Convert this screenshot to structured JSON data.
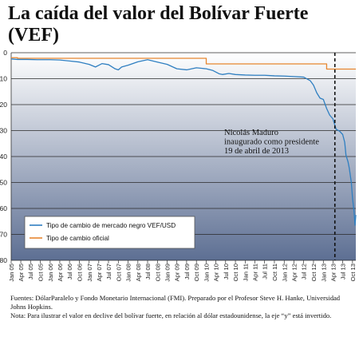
{
  "title": "La caída del valor del Bolívar Fuerte (VEF)",
  "colors": {
    "black_market": "#2f7fc1",
    "official": "#e7862f",
    "background_top": "#ffffff",
    "background_bottom": "#5d6f93",
    "event_line": "#111111"
  },
  "chart_data": {
    "type": "line",
    "y_axis": {
      "min": 0,
      "max": 80,
      "inverted": true,
      "ticks": [
        0,
        10,
        20,
        30,
        40,
        50,
        60,
        70,
        80
      ]
    },
    "x_axis": {
      "min": "2005-01",
      "max": "2013-11",
      "tick_labels": [
        "Jan 05",
        "Apr 05",
        "Jul 05",
        "Oct 05",
        "Jan 06",
        "Apr 06",
        "Jul 06",
        "Oct 06",
        "Jan 07",
        "Apr 07",
        "Jul 07",
        "Oct 07",
        "Jan 08",
        "Apr 08",
        "Jul 08",
        "Oct 08",
        "Jan 09",
        "Apr 09",
        "Jul 09",
        "Oct 09",
        "Jan 10",
        "Apr 10",
        "Jul 10",
        "Oct 10",
        "Jan 11",
        "Apr 11",
        "Jul 11",
        "Oct 11",
        "Jan 12",
        "Apr 12",
        "Jul 12",
        "Oct 12",
        "Jan 13",
        "Apr 13",
        "Jul 13",
        "Oct 13"
      ],
      "tick_dates": [
        "2005-01",
        "2005-04",
        "2005-07",
        "2005-10",
        "2006-01",
        "2006-04",
        "2006-07",
        "2006-10",
        "2007-01",
        "2007-04",
        "2007-07",
        "2007-10",
        "2008-01",
        "2008-04",
        "2008-07",
        "2008-10",
        "2009-01",
        "2009-04",
        "2009-07",
        "2009-10",
        "2010-01",
        "2010-04",
        "2010-07",
        "2010-10",
        "2011-01",
        "2011-04",
        "2011-07",
        "2011-10",
        "2012-01",
        "2012-04",
        "2012-07",
        "2012-10",
        "2013-01",
        "2013-04",
        "2013-07",
        "2013-10"
      ]
    },
    "series": [
      {
        "name": "Tipo de cambio de mercado negro VEF/USD",
        "color": "#2f7fc1",
        "points": [
          [
            "2005-01-01",
            2.4
          ],
          [
            "2005-03-01",
            2.6
          ],
          [
            "2005-06-01",
            2.6
          ],
          [
            "2005-09-01",
            2.7
          ],
          [
            "2006-01-01",
            2.7
          ],
          [
            "2006-04-01",
            2.8
          ],
          [
            "2006-07-01",
            3.2
          ],
          [
            "2006-10-01",
            3.6
          ],
          [
            "2007-01-01",
            4.5
          ],
          [
            "2007-03-01",
            5.5
          ],
          [
            "2007-05-01",
            4.2
          ],
          [
            "2007-07-01",
            4.6
          ],
          [
            "2007-09-01",
            6.2
          ],
          [
            "2007-10-01",
            6.6
          ],
          [
            "2007-11-01",
            5.5
          ],
          [
            "2008-01-01",
            4.8
          ],
          [
            "2008-04-01",
            3.5
          ],
          [
            "2008-07-01",
            2.7
          ],
          [
            "2008-10-01",
            3.6
          ],
          [
            "2009-01-01",
            4.5
          ],
          [
            "2009-04-01",
            6.2
          ],
          [
            "2009-07-01",
            6.6
          ],
          [
            "2009-10-01",
            5.8
          ],
          [
            "2010-01-01",
            6.2
          ],
          [
            "2010-03-01",
            6.8
          ],
          [
            "2010-05-01",
            8.1
          ],
          [
            "2010-06-01",
            8.4
          ],
          [
            "2010-08-01",
            8.0
          ],
          [
            "2010-10-01",
            8.4
          ],
          [
            "2011-01-01",
            8.6
          ],
          [
            "2011-04-01",
            8.7
          ],
          [
            "2011-07-01",
            8.7
          ],
          [
            "2011-10-01",
            8.9
          ],
          [
            "2012-01-01",
            9.0
          ],
          [
            "2012-04-01",
            9.2
          ],
          [
            "2012-07-01",
            9.4
          ],
          [
            "2012-09-01",
            10.8
          ],
          [
            "2012-10-01",
            12.5
          ],
          [
            "2012-11-01",
            15.5
          ],
          [
            "2012-12-01",
            17.5
          ],
          [
            "2013-01-01",
            18.0
          ],
          [
            "2013-02-01",
            21.5
          ],
          [
            "2013-03-01",
            24.0
          ],
          [
            "2013-04-01",
            25.5
          ],
          [
            "2013-05-01",
            29.5
          ],
          [
            "2013-06-01",
            30.2
          ],
          [
            "2013-07-01",
            31.5
          ],
          [
            "2013-07-20",
            34.5
          ],
          [
            "2013-08-01",
            39.5
          ],
          [
            "2013-08-20",
            42.0
          ],
          [
            "2013-09-01",
            44.5
          ],
          [
            "2013-09-20",
            50.0
          ],
          [
            "2013-10-01",
            56.0
          ],
          [
            "2013-10-15",
            61.0
          ],
          [
            "2013-10-25",
            66.5
          ],
          [
            "2013-11-01",
            62.5
          ]
        ]
      },
      {
        "name": "Tipo de cambio oficial",
        "color": "#e7862f",
        "points": [
          [
            "2005-01-01",
            1.92
          ],
          [
            "2005-03-01",
            1.92
          ],
          [
            "2005-03-01",
            2.15
          ],
          [
            "2010-01-01",
            2.15
          ],
          [
            "2010-01-01",
            4.3
          ],
          [
            "2013-02-01",
            4.3
          ],
          [
            "2013-02-01",
            6.3
          ],
          [
            "2013-11-01",
            6.3
          ]
        ]
      }
    ],
    "legend": {
      "placement": "bottom-left"
    },
    "annotations": [
      {
        "date": "2013-04-19",
        "lines": [
          "Nicolás Maduro",
          "inaugurado como presidente",
          "19 de abril de 2013"
        ]
      }
    ]
  },
  "footer": {
    "sources": "Fuentes: DólarParalelo y Fondo Monetario Internacional (FMI). Preparado por el Profesor Steve H. Hanke, Universidad Johns Hopkins.",
    "note": "Nota: Para ilustrar el valor en declive del bolívar fuerte, en relación al dólar estadounidense, la eje “y” está invertido."
  }
}
